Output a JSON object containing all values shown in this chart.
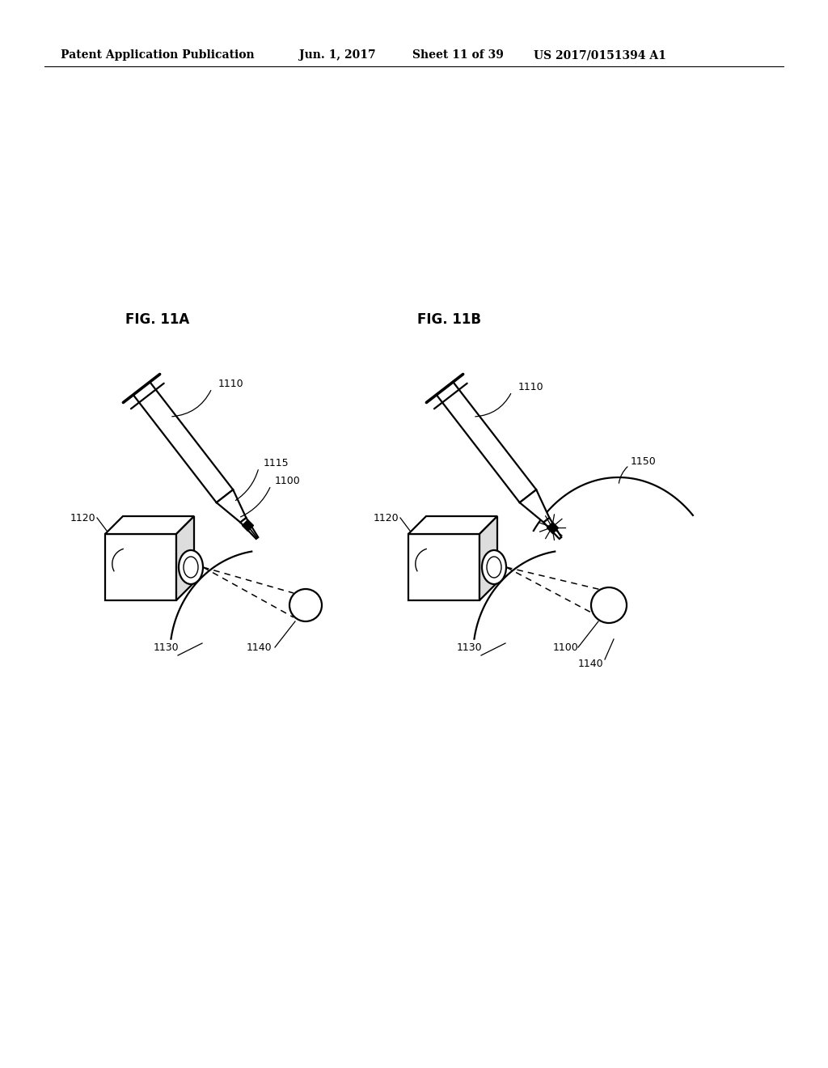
{
  "bg_color": "#ffffff",
  "header_text": "Patent Application Publication",
  "header_date": "Jun. 1, 2017",
  "header_sheet": "Sheet 11 of 39",
  "header_patent": "US 2017/0151394 A1",
  "fig_a_label": "FIG. 11A",
  "fig_b_label": "FIG. 11B",
  "font_size_header": 10,
  "font_size_label": 9,
  "font_size_fig": 12,
  "lw_main": 1.6,
  "lw_thin": 1.0,
  "lw_dash": 1.1
}
